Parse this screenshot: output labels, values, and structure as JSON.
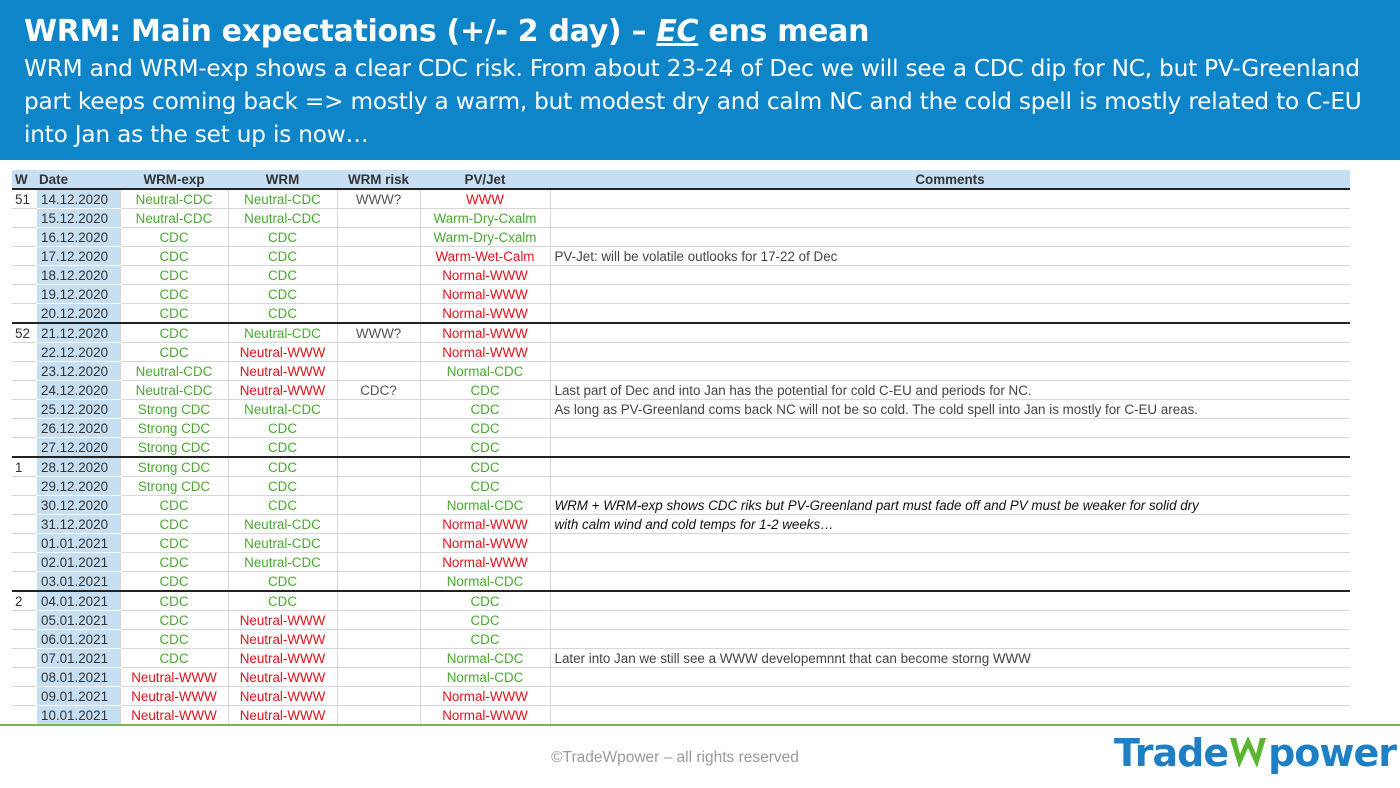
{
  "header": {
    "title_prefix": "WRM: Main expectations (+/- 2 day) – ",
    "title_ec": "EC",
    "title_suffix": " ens mean",
    "subtitle": "WRM and WRM-exp shows a clear CDC risk. From about 23-24 of Dec we will see a CDC dip for NC, but PV-Greenland part keeps coming back => mostly a warm, but modest dry and calm NC and the cold spell is mostly related to C-EU into Jan as the set up is now…"
  },
  "table": {
    "headers": {
      "w": "W",
      "date": "Date",
      "wrm_exp": "WRM-exp",
      "wrm": "WRM",
      "risk": "WRM risk",
      "pv": "PV/Jet",
      "comments": "Comments"
    },
    "rows": [
      {
        "w": "51",
        "date": "14.12.2020",
        "wrm_exp": "Neutral-CDC",
        "we": "green",
        "wrm": "Neutral-CDC",
        "wc": "green",
        "risk": "WWW?",
        "pv": "WWW",
        "pc": "red",
        "comm": ""
      },
      {
        "w": "",
        "date": "15.12.2020",
        "wrm_exp": "Neutral-CDC",
        "we": "green",
        "wrm": "Neutral-CDC",
        "wc": "green",
        "risk": "",
        "pv": "Warm-Dry-Cxalm",
        "pc": "green",
        "comm": ""
      },
      {
        "w": "",
        "date": "16.12.2020",
        "wrm_exp": "CDC",
        "we": "green",
        "wrm": "CDC",
        "wc": "green",
        "risk": "",
        "pv": "Warm-Dry-Cxalm",
        "pc": "green",
        "comm": ""
      },
      {
        "w": "",
        "date": "17.12.2020",
        "wrm_exp": "CDC",
        "we": "green",
        "wrm": "CDC",
        "wc": "green",
        "risk": "",
        "pv": "Warm-Wet-Calm",
        "pc": "red",
        "comm": "PV-Jet: will be volatile outlooks for 17-22 of Dec"
      },
      {
        "w": "",
        "date": "18.12.2020",
        "wrm_exp": "CDC",
        "we": "green",
        "wrm": "CDC",
        "wc": "green",
        "risk": "",
        "pv": "Normal-WWW",
        "pc": "red",
        "comm": ""
      },
      {
        "w": "",
        "date": "19.12.2020",
        "wrm_exp": "CDC",
        "we": "green",
        "wrm": "CDC",
        "wc": "green",
        "risk": "",
        "pv": "Normal-WWW",
        "pc": "red",
        "comm": ""
      },
      {
        "w": "",
        "date": "20.12.2020",
        "wrm_exp": "CDC",
        "we": "green",
        "wrm": "CDC",
        "wc": "green",
        "risk": "",
        "pv": "Normal-WWW",
        "pc": "red",
        "comm": ""
      },
      {
        "w": "52",
        "date": "21.12.2020",
        "wrm_exp": "CDC",
        "we": "green",
        "wrm": "Neutral-CDC",
        "wc": "green",
        "risk": "WWW?",
        "pv": "Normal-WWW",
        "pc": "red",
        "comm": ""
      },
      {
        "w": "",
        "date": "22.12.2020",
        "wrm_exp": "CDC",
        "we": "green",
        "wrm": "Neutral-WWW",
        "wc": "red",
        "risk": "",
        "pv": "Normal-WWW",
        "pc": "red",
        "comm": ""
      },
      {
        "w": "",
        "date": "23.12.2020",
        "wrm_exp": "Neutral-CDC",
        "we": "green",
        "wrm": "Neutral-WWW",
        "wc": "red",
        "risk": "",
        "pv": "Normal-CDC",
        "pc": "green",
        "comm": ""
      },
      {
        "w": "",
        "date": "24.12.2020",
        "wrm_exp": "Neutral-CDC",
        "we": "green",
        "wrm": "Neutral-WWW",
        "wc": "red",
        "risk": "CDC?",
        "pv": "CDC",
        "pc": "green",
        "comm": "Last part of Dec and into Jan has the potential for cold C-EU and periods for NC."
      },
      {
        "w": "",
        "date": "25.12.2020",
        "wrm_exp": "Strong CDC",
        "we": "green",
        "wrm": "Neutral-CDC",
        "wc": "green",
        "risk": "",
        "pv": "CDC",
        "pc": "green",
        "comm": "As long as PV-Greenland coms back NC will not be so cold. The cold spell into Jan is mostly for C-EU areas."
      },
      {
        "w": "",
        "date": "26.12.2020",
        "wrm_exp": "Strong CDC",
        "we": "green",
        "wrm": "CDC",
        "wc": "green",
        "risk": "",
        "pv": "CDC",
        "pc": "green",
        "comm": ""
      },
      {
        "w": "",
        "date": "27.12.2020",
        "wrm_exp": "Strong CDC",
        "we": "green",
        "wrm": "CDC",
        "wc": "green",
        "risk": "",
        "pv": "CDC",
        "pc": "green",
        "comm": ""
      },
      {
        "w": "1",
        "date": "28.12.2020",
        "wrm_exp": "Strong CDC",
        "we": "green",
        "wrm": "CDC",
        "wc": "green",
        "risk": "",
        "pv": "CDC",
        "pc": "green",
        "comm": ""
      },
      {
        "w": "",
        "date": "29.12.2020",
        "wrm_exp": "Strong CDC",
        "we": "green",
        "wrm": "CDC",
        "wc": "green",
        "risk": "",
        "pv": "CDC",
        "pc": "green",
        "comm": ""
      },
      {
        "w": "",
        "date": "30.12.2020",
        "wrm_exp": "CDC",
        "we": "green",
        "wrm": "CDC",
        "wc": "green",
        "risk": "",
        "pv": "Normal-CDC",
        "pc": "green",
        "comm": "WRM + WRM-exp shows CDC riks but PV-Greenland part must fade off and PV must be weaker for solid dry",
        "it": true
      },
      {
        "w": "",
        "date": "31.12.2020",
        "wrm_exp": "CDC",
        "we": "green",
        "wrm": "Neutral-CDC",
        "wc": "green",
        "risk": "",
        "pv": "Normal-WWW",
        "pc": "red",
        "comm": "with calm wind and cold temps for 1-2 weeks…",
        "it": true
      },
      {
        "w": "",
        "date": "01.01.2021",
        "wrm_exp": "CDC",
        "we": "green",
        "wrm": "Neutral-CDC",
        "wc": "green",
        "risk": "",
        "pv": "Normal-WWW",
        "pc": "red",
        "comm": ""
      },
      {
        "w": "",
        "date": "02.01.2021",
        "wrm_exp": "CDC",
        "we": "green",
        "wrm": "Neutral-CDC",
        "wc": "green",
        "risk": "",
        "pv": "Normal-WWW",
        "pc": "red",
        "comm": ""
      },
      {
        "w": "",
        "date": "03.01.2021",
        "wrm_exp": "CDC",
        "we": "green",
        "wrm": "CDC",
        "wc": "green",
        "risk": "",
        "pv": "Normal-CDC",
        "pc": "green",
        "comm": ""
      },
      {
        "w": "2",
        "date": "04.01.2021",
        "wrm_exp": "CDC",
        "we": "green",
        "wrm": "CDC",
        "wc": "green",
        "risk": "",
        "pv": "CDC",
        "pc": "green",
        "comm": ""
      },
      {
        "w": "",
        "date": "05.01.2021",
        "wrm_exp": "CDC",
        "we": "green",
        "wrm": "Neutral-WWW",
        "wc": "red",
        "risk": "",
        "pv": "CDC",
        "pc": "green",
        "comm": ""
      },
      {
        "w": "",
        "date": "06.01.2021",
        "wrm_exp": "CDC",
        "we": "green",
        "wrm": "Neutral-WWW",
        "wc": "red",
        "risk": "",
        "pv": "CDC",
        "pc": "green",
        "comm": ""
      },
      {
        "w": "",
        "date": "07.01.2021",
        "wrm_exp": "CDC",
        "we": "green",
        "wrm": "Neutral-WWW",
        "wc": "red",
        "risk": "",
        "pv": "Normal-CDC",
        "pc": "green",
        "comm": "Later into Jan we still see a WWW developemnnt that can become storng WWW"
      },
      {
        "w": "",
        "date": "08.01.2021",
        "wrm_exp": "Neutral-WWW",
        "we": "red",
        "wrm": "Neutral-WWW",
        "wc": "red",
        "risk": "",
        "pv": "Normal-CDC",
        "pc": "green",
        "comm": ""
      },
      {
        "w": "",
        "date": "09.01.2021",
        "wrm_exp": "Neutral-WWW",
        "we": "red",
        "wrm": "Neutral-WWW",
        "wc": "red",
        "risk": "",
        "pv": "Normal-WWW",
        "pc": "red",
        "comm": ""
      },
      {
        "w": "",
        "date": "10.01.2021",
        "wrm_exp": "Neutral-WWW",
        "we": "red",
        "wrm": "Neutral-WWW",
        "wc": "red",
        "risk": "",
        "pv": "Normal-WWW",
        "pc": "red",
        "comm": ""
      }
    ]
  },
  "footer": {
    "copyright": "©TradeWpower – all rights reserved",
    "logo_left": "Trade",
    "logo_right": "power"
  },
  "colors": {
    "header_bg": "#0f85c9",
    "green": "#4aa832",
    "red": "#e0131b",
    "date_bg": "#c6dff2",
    "logo": "#1f7fc4",
    "logo_w": "#5bb531"
  }
}
